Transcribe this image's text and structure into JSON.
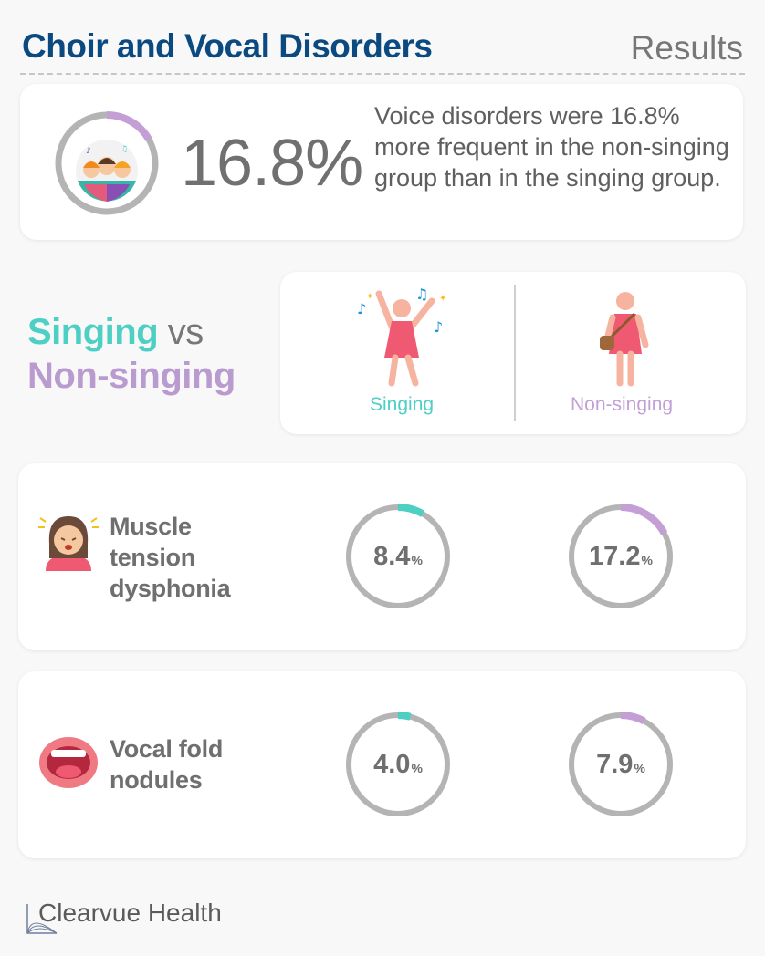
{
  "header": {
    "title": "Choir and Vocal Disorders",
    "section": "Results"
  },
  "summary": {
    "percent": "16.8%",
    "text": "Voice disorders were 16.8% more frequent in the non-singing group than in the singing group."
  },
  "comparison": {
    "singing": "Singing",
    "vs": " vs",
    "non_singing": "Non-singing"
  },
  "groups": {
    "singing_label": "Singing",
    "non_singing_label": "Non-singing"
  },
  "metrics": [
    {
      "label_lines": [
        "Muscle",
        "tension",
        "dysphonia"
      ],
      "singing": "8.4",
      "non_singing": "17.2",
      "unit": "%"
    },
    {
      "label_lines": [
        "Vocal fold",
        "nodules"
      ],
      "singing": "4.0",
      "non_singing": "7.9",
      "unit": "%"
    }
  ],
  "colors": {
    "title": "#0b4a80",
    "singing": "#4ecfc4",
    "non_singing": "#c39fd6",
    "ring_track": "#b4b4b4"
  },
  "icons": [
    "choir-group-icon",
    "singing-person-icon",
    "non-singing-person-icon",
    "stressed-face-icon",
    "open-mouth-icon",
    "clearvue-logo-icon"
  ],
  "chart_data": {
    "type": "donut",
    "title": "",
    "categories": [
      "Muscle tension dysphonia",
      "Vocal fold nodules"
    ],
    "series": [
      {
        "name": "Singing",
        "values": [
          8.4,
          4.0
        ]
      },
      {
        "name": "Non-singing",
        "values": [
          17.2,
          7.9
        ]
      }
    ],
    "summary_difference": 16.8,
    "unit": "%"
  },
  "footer": {
    "brand": "Clearvue Health"
  }
}
